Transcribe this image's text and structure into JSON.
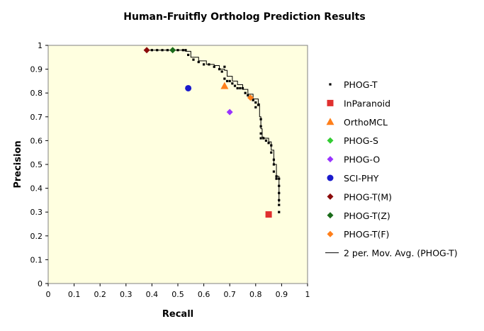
{
  "chart_data": {
    "type": "scatter",
    "title": "Human-Fruitfly Ortholog Prediction Results",
    "xlabel": "Recall",
    "ylabel": "Precision",
    "xlim": [
      0,
      1
    ],
    "ylim": [
      0,
      1
    ],
    "x_ticks": [
      "0",
      "0.1",
      "0.2",
      "0.3",
      "0.4",
      "0.5",
      "0.6",
      "0.7",
      "0.8",
      "0.9",
      "1"
    ],
    "y_ticks": [
      "0",
      "0.1",
      "0.2",
      "0.3",
      "0.4",
      "0.5",
      "0.6",
      "0.7",
      "0.8",
      "0.9",
      "1"
    ],
    "grid": false,
    "plot_background": "#ffffe0",
    "legend_position": "right",
    "series": [
      {
        "name": "PHOG-T",
        "marker": "small-square",
        "color": "#000000",
        "x": [
          0.38,
          0.4,
          0.42,
          0.44,
          0.46,
          0.48,
          0.5,
          0.52,
          0.53,
          0.54,
          0.56,
          0.58,
          0.6,
          0.62,
          0.64,
          0.66,
          0.67,
          0.68,
          0.68,
          0.69,
          0.7,
          0.71,
          0.72,
          0.73,
          0.74,
          0.75,
          0.76,
          0.77,
          0.78,
          0.79,
          0.8,
          0.8,
          0.81,
          0.82,
          0.82,
          0.82,
          0.82,
          0.83,
          0.84,
          0.85,
          0.86,
          0.86,
          0.87,
          0.87,
          0.87,
          0.88,
          0.88,
          0.89,
          0.89,
          0.89,
          0.89,
          0.89,
          0.89
        ],
        "y": [
          0.98,
          0.98,
          0.98,
          0.98,
          0.98,
          0.98,
          0.98,
          0.98,
          0.98,
          0.96,
          0.94,
          0.93,
          0.92,
          0.92,
          0.91,
          0.9,
          0.89,
          0.91,
          0.86,
          0.85,
          0.85,
          0.84,
          0.83,
          0.82,
          0.82,
          0.82,
          0.8,
          0.79,
          0.78,
          0.77,
          0.76,
          0.74,
          0.75,
          0.69,
          0.66,
          0.63,
          0.61,
          0.61,
          0.6,
          0.59,
          0.58,
          0.55,
          0.52,
          0.5,
          0.47,
          0.45,
          0.44,
          0.44,
          0.41,
          0.38,
          0.35,
          0.33,
          0.3
        ]
      },
      {
        "name": "InParanoid",
        "marker": "square",
        "color": "#e0302f",
        "x": [
          0.85
        ],
        "y": [
          0.29
        ]
      },
      {
        "name": "OrthoMCL",
        "marker": "triangle",
        "color": "#ff7f1a",
        "x": [
          0.68
        ],
        "y": [
          0.83
        ]
      },
      {
        "name": "PHOG-S",
        "marker": "diamond",
        "color": "#33cc33",
        "x": [],
        "y": []
      },
      {
        "name": "PHOG-O",
        "marker": "diamond",
        "color": "#9933ff",
        "x": [
          0.7
        ],
        "y": [
          0.72
        ]
      },
      {
        "name": "SCI-PHY",
        "marker": "circle",
        "color": "#1a1acc",
        "x": [
          0.54
        ],
        "y": [
          0.82
        ]
      },
      {
        "name": "PHOG-T(M)",
        "marker": "diamond",
        "color": "#8b0a0a",
        "x": [
          0.38
        ],
        "y": [
          0.98
        ]
      },
      {
        "name": "PHOG-T(Z)",
        "marker": "diamond",
        "color": "#1a6b1a",
        "x": [
          0.48
        ],
        "y": [
          0.98
        ]
      },
      {
        "name": "PHOG-T(F)",
        "marker": "diamond",
        "color": "#ff7f1a",
        "x": [
          0.78
        ],
        "y": [
          0.78
        ]
      }
    ],
    "trendline": {
      "name": "2 per. Mov. Avg. (PHOG-T)",
      "color": "#000000",
      "x": [
        0.38,
        0.45,
        0.5,
        0.53,
        0.55,
        0.58,
        0.61,
        0.64,
        0.66,
        0.68,
        0.69,
        0.71,
        0.73,
        0.75,
        0.77,
        0.79,
        0.81,
        0.815,
        0.82,
        0.825,
        0.83,
        0.85,
        0.86,
        0.87,
        0.88,
        0.89,
        0.89
      ],
      "y": [
        0.98,
        0.98,
        0.98,
        0.975,
        0.95,
        0.935,
        0.92,
        0.915,
        0.9,
        0.895,
        0.87,
        0.85,
        0.835,
        0.815,
        0.795,
        0.775,
        0.755,
        0.7,
        0.65,
        0.615,
        0.61,
        0.595,
        0.56,
        0.5,
        0.45,
        0.44,
        0.34
      ]
    }
  }
}
